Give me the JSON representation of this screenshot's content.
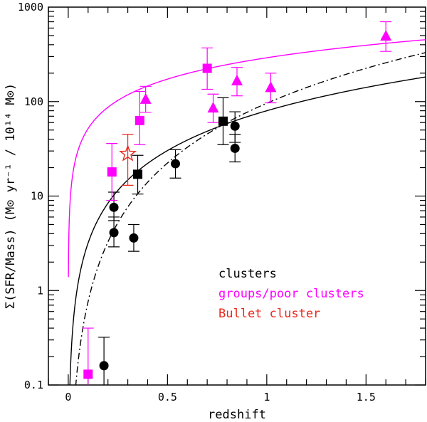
{
  "chart_data": {
    "type": "scatter",
    "title": "",
    "xlabel": "redshift",
    "ylabel": "Σ(SFR/Mass) (M⊙ yr⁻¹ / 10¹⁴ M⊙)",
    "xlim": [
      -0.1,
      1.8
    ],
    "ylim": [
      0.1,
      1000
    ],
    "yscale": "log",
    "grid": false,
    "x_ticks": [
      {
        "value": 0,
        "label": "0"
      },
      {
        "value": 0.5,
        "label": "0.5"
      },
      {
        "value": 1,
        "label": "1"
      },
      {
        "value": 1.5,
        "label": "1.5"
      }
    ],
    "y_ticks": [
      {
        "value": 0.1,
        "label": "0.1"
      },
      {
        "value": 1,
        "label": "1"
      },
      {
        "value": 10,
        "label": "10"
      },
      {
        "value": 100,
        "label": "100"
      },
      {
        "value": 1000,
        "label": "1000"
      }
    ],
    "colors": {
      "clusters": "#000000",
      "groups": "#ff00ff",
      "bullet": "#e8291c"
    },
    "legend": {
      "placement": "bottom-right",
      "entries": [
        {
          "label": "clusters",
          "color": "#000000"
        },
        {
          "label": "groups/poor clusters",
          "color": "#ff00ff"
        },
        {
          "label": "Bullet cluster",
          "color": "#e8291c"
        }
      ]
    },
    "curves": [
      {
        "name": "groups power-law fit",
        "style": "solid",
        "color": "#ff00ff",
        "exponent": 0.75,
        "norm": 291
      },
      {
        "name": "clusters fit",
        "style": "solid",
        "color": "#000000",
        "exponent": 1.4,
        "norm": 80
      },
      {
        "name": "clusters alt fit",
        "style": "dash-dot",
        "color": "#000000",
        "exponent": 2.1,
        "norm": 96
      }
    ],
    "series": [
      {
        "name": "clusters (circles)",
        "marker": "circle",
        "color": "#000000",
        "points": [
          {
            "x": 0.18,
            "y": 0.16,
            "lo": 0.1,
            "hi": 0.32
          },
          {
            "x": 0.23,
            "y": 7.6,
            "lo": 5.5,
            "hi": 11
          },
          {
            "x": 0.23,
            "y": 4.1,
            "lo": 2.9,
            "hi": 6.0
          },
          {
            "x": 0.33,
            "y": 3.6,
            "lo": 2.6,
            "hi": 5.0
          },
          {
            "x": 0.54,
            "y": 22,
            "lo": 15.5,
            "hi": 31
          },
          {
            "x": 0.84,
            "y": 55,
            "lo": 37,
            "hi": 78
          },
          {
            "x": 0.84,
            "y": 32,
            "lo": 23,
            "hi": 45
          }
        ]
      },
      {
        "name": "clusters (squares)",
        "marker": "square",
        "color": "#000000",
        "points": [
          {
            "x": 0.35,
            "y": 17,
            "lo": 10.5,
            "hi": 27
          },
          {
            "x": 0.78,
            "y": 62,
            "lo": 35,
            "hi": 110
          }
        ]
      },
      {
        "name": "groups (squares)",
        "marker": "square",
        "color": "#ff00ff",
        "points": [
          {
            "x": 0.1,
            "y": 0.13,
            "lo": 0.1,
            "hi": 0.4
          },
          {
            "x": 0.22,
            "y": 18,
            "lo": 9,
            "hi": 36
          },
          {
            "x": 0.36,
            "y": 63,
            "lo": 35,
            "hi": 128
          },
          {
            "x": 0.7,
            "y": 225,
            "lo": 135,
            "hi": 370
          }
        ]
      },
      {
        "name": "groups (triangles)",
        "marker": "triangle",
        "color": "#ff00ff",
        "points": [
          {
            "x": 0.39,
            "y": 105,
            "lo": 77,
            "hi": 145
          },
          {
            "x": 0.73,
            "y": 85,
            "lo": 60,
            "hi": 120
          },
          {
            "x": 0.85,
            "y": 165,
            "lo": 115,
            "hi": 230
          },
          {
            "x": 1.02,
            "y": 140,
            "lo": 97,
            "hi": 200
          },
          {
            "x": 1.6,
            "y": 490,
            "lo": 340,
            "hi": 700
          }
        ]
      },
      {
        "name": "Bullet cluster",
        "marker": "star",
        "color": "#e8291c",
        "points": [
          {
            "x": 0.3,
            "y": 28,
            "lo": 13,
            "hi": 45
          }
        ]
      }
    ]
  }
}
